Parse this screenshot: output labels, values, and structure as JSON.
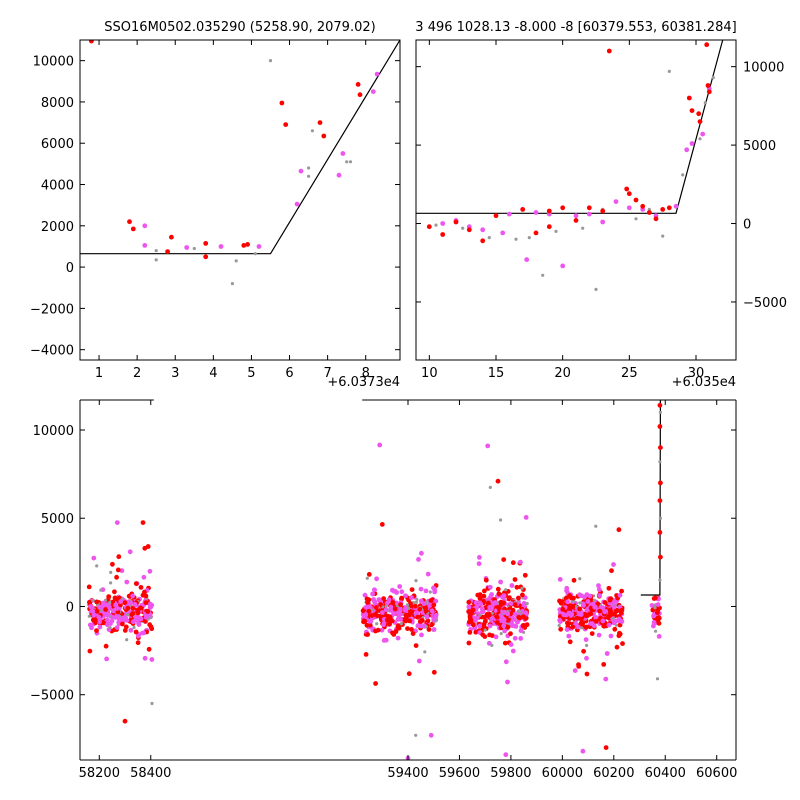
{
  "chart_data": [
    {
      "type": "scatter",
      "panel": "top-left",
      "title": "SSO16M0502.035290 (5258.90, 2079.02)",
      "x_offset_label": "+6.0373e4",
      "xlim": [
        0.5,
        8.9
      ],
      "ylim": [
        -4500,
        11000
      ],
      "xticks": [
        1,
        2,
        3,
        4,
        5,
        6,
        7,
        8
      ],
      "yticks": [
        -4000,
        -2000,
        0,
        2000,
        4000,
        6000,
        8000,
        10000
      ],
      "yaxis_side": "left",
      "colors": {
        "red": "#ff0000",
        "pink": "#ee55ee",
        "gray": "#999999",
        "line": "#000000"
      },
      "model_line": [
        [
          0.5,
          650
        ],
        [
          5.5,
          650
        ],
        [
          8.9,
          11000
        ]
      ],
      "series": [
        {
          "color": "red",
          "points": [
            [
              0.8,
              10950
            ],
            [
              1.8,
              2200
            ],
            [
              1.9,
              1850
            ],
            [
              2.8,
              750
            ],
            [
              2.9,
              1450
            ],
            [
              3.8,
              1150
            ],
            [
              3.8,
              500
            ],
            [
              4.8,
              1050
            ],
            [
              4.9,
              1100
            ],
            [
              5.8,
              7950
            ],
            [
              5.9,
              6900
            ],
            [
              6.8,
              7000
            ],
            [
              6.9,
              6350
            ],
            [
              7.8,
              8850
            ],
            [
              7.85,
              8350
            ]
          ]
        },
        {
          "color": "pink",
          "points": [
            [
              2.2,
              2000
            ],
            [
              2.2,
              1050
            ],
            [
              3.3,
              950
            ],
            [
              4.2,
              1000
            ],
            [
              5.2,
              1000
            ],
            [
              6.2,
              3050
            ],
            [
              6.3,
              4650
            ],
            [
              7.3,
              4450
            ],
            [
              7.4,
              5500
            ],
            [
              8.2,
              8500
            ],
            [
              8.3,
              9350
            ]
          ]
        },
        {
          "color": "gray",
          "points": [
            [
              2.5,
              350
            ],
            [
              2.5,
              800
            ],
            [
              3.5,
              900
            ],
            [
              4.5,
              -800
            ],
            [
              4.6,
              300
            ],
            [
              5.1,
              650
            ],
            [
              5.5,
              10000
            ],
            [
              6.5,
              4800
            ],
            [
              6.5,
              4400
            ],
            [
              6.6,
              6600
            ],
            [
              7.5,
              5100
            ],
            [
              7.6,
              5100
            ]
          ]
        }
      ]
    },
    {
      "type": "scatter",
      "panel": "top-right",
      "title": "3 496 1028.13 -8.000 -8 [60379.553, 60381.284]",
      "x_offset_label": "+6.035e4",
      "xlim": [
        9.0,
        33.0
      ],
      "ylim": [
        -8700,
        11700
      ],
      "xticks": [
        10,
        15,
        20,
        25,
        30
      ],
      "yticks": [
        -5000,
        0,
        5000,
        10000
      ],
      "yaxis_side": "right",
      "model_line": [
        [
          9.0,
          650
        ],
        [
          28.5,
          650
        ],
        [
          32.0,
          11700
        ]
      ],
      "series": [
        {
          "color": "red",
          "points": [
            [
              10,
              -200
            ],
            [
              11,
              -700
            ],
            [
              12,
              100
            ],
            [
              13,
              -400
            ],
            [
              14,
              -1100
            ],
            [
              15,
              500
            ],
            [
              17,
              900
            ],
            [
              18,
              -600
            ],
            [
              19,
              800
            ],
            [
              19,
              -200
            ],
            [
              20,
              1000
            ],
            [
              21,
              200
            ],
            [
              22,
              1000
            ],
            [
              23,
              800
            ],
            [
              23.5,
              11000
            ],
            [
              24.8,
              2200
            ],
            [
              25,
              1900
            ],
            [
              25.5,
              1500
            ],
            [
              26,
              1100
            ],
            [
              26.5,
              700
            ],
            [
              27,
              300
            ],
            [
              27.5,
              900
            ],
            [
              28,
              1000
            ],
            [
              29.5,
              8000
            ],
            [
              29.7,
              7200
            ],
            [
              30.2,
              7000
            ],
            [
              30.3,
              6500
            ],
            [
              30.8,
              11400
            ],
            [
              30.9,
              8800
            ],
            [
              31,
              8400
            ]
          ]
        },
        {
          "color": "pink",
          "points": [
            [
              11,
              0
            ],
            [
              12,
              200
            ],
            [
              13,
              -200
            ],
            [
              14,
              -400
            ],
            [
              15.5,
              -600
            ],
            [
              16,
              600
            ],
            [
              17.3,
              -2300
            ],
            [
              18,
              700
            ],
            [
              19,
              600
            ],
            [
              20,
              -2700
            ],
            [
              21,
              500
            ],
            [
              22,
              600
            ],
            [
              23,
              100
            ],
            [
              24,
              1400
            ],
            [
              25,
              1000
            ],
            [
              26,
              900
            ],
            [
              27,
              500
            ],
            [
              28.5,
              1100
            ],
            [
              29.3,
              4700
            ],
            [
              29.7,
              5100
            ],
            [
              30.5,
              5700
            ],
            [
              31,
              8600
            ]
          ]
        },
        {
          "color": "gray",
          "points": [
            [
              10.5,
              -100
            ],
            [
              12.5,
              -300
            ],
            [
              14.5,
              -900
            ],
            [
              16.5,
              -1000
            ],
            [
              17.5,
              -900
            ],
            [
              18.5,
              -3300
            ],
            [
              19.5,
              -500
            ],
            [
              21.5,
              -300
            ],
            [
              22.5,
              -4200
            ],
            [
              23,
              900
            ],
            [
              25.5,
              300
            ],
            [
              26.5,
              900
            ],
            [
              27.5,
              -800
            ],
            [
              28,
              9700
            ],
            [
              29,
              3100
            ],
            [
              30.3,
              5400
            ],
            [
              30.7,
              7700
            ],
            [
              31.3,
              9300
            ]
          ]
        }
      ]
    },
    {
      "type": "scatter",
      "panel": "bottom",
      "title": "",
      "xlim": [
        58125,
        60675
      ],
      "ylim": [
        -8700,
        11700
      ],
      "xticks": [
        58200,
        58400,
        59400,
        59600,
        59800,
        60000,
        60200,
        60400,
        60600
      ],
      "yticks": [
        -5000,
        0,
        5000,
        10000
      ],
      "yaxis_side": "left",
      "x_gap": [
        58412,
        59222
      ],
      "model_line": [
        [
          60305,
          650
        ],
        [
          60379,
          650
        ],
        [
          60381,
          11700
        ]
      ],
      "clusters": [
        {
          "x_range": [
            58160,
            58405
          ],
          "n": 320
        },
        {
          "x_range": [
            59225,
            59510
          ],
          "n": 380
        },
        {
          "x_range": [
            59635,
            59865
          ],
          "n": 360
        },
        {
          "x_range": [
            59985,
            60235
          ],
          "n": 360
        },
        {
          "x_range": [
            60348,
            60378
          ],
          "n": 40
        }
      ],
      "outliers": [
        {
          "color": "pink",
          "points": [
            [
              59290,
              9150
            ],
            [
              59710,
              9100
            ],
            [
              58270,
              4750
            ],
            [
              58320,
              3100
            ],
            [
              59490,
              -7300
            ],
            [
              59400,
              -8600
            ],
            [
              60080,
              -8200
            ],
            [
              59780,
              -8400
            ]
          ]
        },
        {
          "color": "red",
          "points": [
            [
              59300,
              4650
            ],
            [
              59750,
              7100
            ],
            [
              58370,
              4750
            ],
            [
              60220,
              4350
            ],
            [
              58300,
              -6500
            ],
            [
              60170,
              -8000
            ],
            [
              58390,
              3400
            ]
          ]
        },
        {
          "color": "gray",
          "points": [
            [
              59720,
              6750
            ],
            [
              59760,
              4900
            ],
            [
              60130,
              4550
            ],
            [
              58405,
              -5500
            ],
            [
              59430,
              -7300
            ],
            [
              58190,
              2300
            ],
            [
              60370,
              -4100
            ]
          ]
        }
      ],
      "spike": {
        "x": 60380,
        "points_y": [
          1500,
          2800,
          4200,
          5000,
          6000,
          7000,
          8200,
          9000,
          10200,
          11000,
          11400
        ]
      }
    }
  ]
}
